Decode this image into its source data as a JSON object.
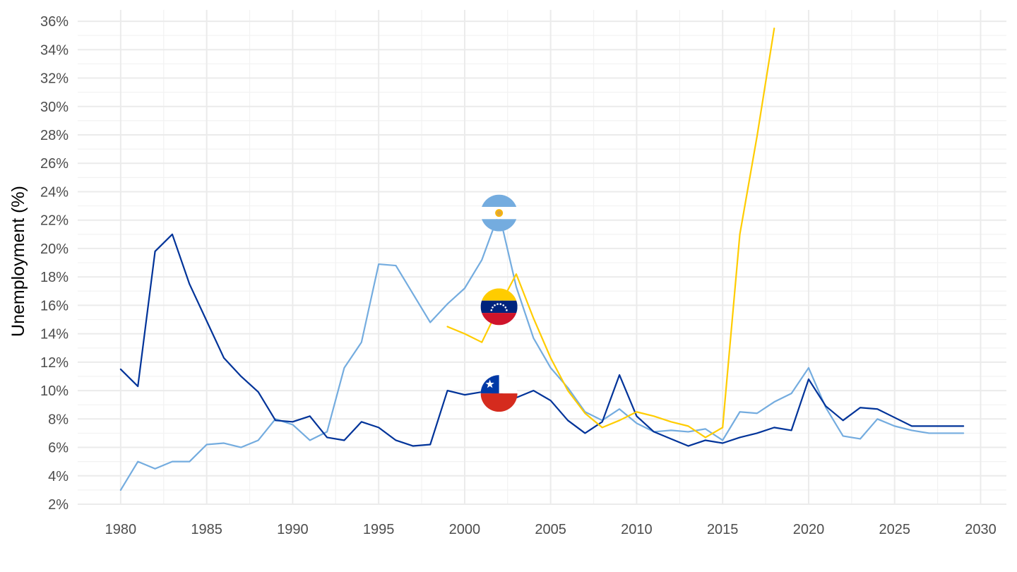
{
  "chart_data": {
    "type": "line",
    "title": "",
    "xlabel": "",
    "ylabel": "Unemployment (%)",
    "xlim": [
      1977.5,
      2031.5
    ],
    "ylim": [
      2,
      36.8
    ],
    "x_ticks": [
      1980,
      1985,
      1990,
      1995,
      2000,
      2005,
      2010,
      2015,
      2020,
      2025,
      2030
    ],
    "y_ticks": [
      2,
      4,
      6,
      8,
      10,
      12,
      14,
      16,
      18,
      20,
      22,
      24,
      26,
      28,
      30,
      32,
      34,
      36
    ],
    "y_tick_suffix": "%",
    "grid": true,
    "legend": "flag icons near series, around x = 2002",
    "series": [
      {
        "key": "chile",
        "flag": "chile-flag-icon",
        "color": "#003399",
        "flag_at": [
          2002,
          9.8
        ],
        "x": [
          1980,
          1981,
          1982,
          1983,
          1984,
          1985,
          1986,
          1987,
          1988,
          1989,
          1990,
          1991,
          1992,
          1993,
          1994,
          1995,
          1996,
          1997,
          1998,
          1999,
          2000,
          2001,
          2002,
          2003,
          2004,
          2005,
          2006,
          2007,
          2008,
          2009,
          2010,
          2011,
          2012,
          2013,
          2014,
          2015,
          2016,
          2017,
          2018,
          2019,
          2020,
          2021,
          2022,
          2023,
          2024,
          2025,
          2026,
          2027,
          2028,
          2029
        ],
        "y": [
          11.5,
          10.3,
          19.8,
          21.0,
          17.5,
          14.9,
          12.3,
          11.0,
          9.9,
          7.9,
          7.8,
          8.2,
          6.7,
          6.5,
          7.8,
          7.4,
          6.5,
          6.1,
          6.2,
          10.0,
          9.7,
          9.9,
          9.8,
          9.5,
          10.0,
          9.3,
          7.9,
          7.0,
          7.8,
          11.1,
          8.2,
          7.1,
          6.6,
          6.1,
          6.5,
          6.3,
          6.7,
          7.0,
          7.4,
          7.2,
          10.8,
          8.9,
          7.9,
          8.8,
          8.7,
          8.1,
          7.5,
          7.5,
          7.5,
          7.5
        ]
      },
      {
        "key": "argentina",
        "flag": "argentina-flag-icon",
        "color": "#74acdf",
        "flag_at": [
          2002,
          22.5
        ],
        "x": [
          1980,
          1981,
          1982,
          1983,
          1984,
          1985,
          1986,
          1987,
          1988,
          1989,
          1990,
          1991,
          1992,
          1993,
          1994,
          1995,
          1996,
          1997,
          1998,
          1999,
          2000,
          2001,
          2002,
          2003,
          2004,
          2005,
          2006,
          2007,
          2008,
          2009,
          2010,
          2011,
          2012,
          2013,
          2014,
          2015,
          2016,
          2017,
          2018,
          2019,
          2020,
          2021,
          2022,
          2023,
          2024,
          2025,
          2026,
          2027,
          2028,
          2029
        ],
        "y": [
          3.0,
          5.0,
          4.5,
          5.0,
          5.0,
          6.2,
          6.3,
          6.0,
          6.5,
          8.0,
          7.6,
          6.5,
          7.1,
          11.6,
          13.4,
          18.9,
          18.8,
          16.8,
          14.8,
          16.1,
          17.2,
          19.2,
          22.5,
          17.3,
          13.7,
          11.6,
          10.2,
          8.5,
          7.9,
          8.7,
          7.7,
          7.1,
          7.2,
          7.1,
          7.3,
          6.5,
          8.5,
          8.4,
          9.2,
          9.8,
          11.6,
          8.8,
          6.8,
          6.6,
          8.0,
          7.5,
          7.2,
          7.0,
          7.0,
          7.0
        ]
      },
      {
        "key": "venezuela",
        "flag": "venezuela-flag-icon",
        "color": "#ffcc00",
        "flag_at": [
          2002,
          15.9
        ],
        "x": [
          1999,
          2000,
          2001,
          2002,
          2003,
          2004,
          2005,
          2006,
          2007,
          2008,
          2009,
          2010,
          2011,
          2012,
          2013,
          2014,
          2015,
          2016,
          2017,
          2018
        ],
        "y": [
          14.5,
          14.0,
          13.4,
          15.9,
          18.2,
          15.1,
          12.3,
          10.0,
          8.4,
          7.4,
          7.9,
          8.5,
          8.2,
          7.8,
          7.5,
          6.7,
          7.4,
          21.0,
          27.9,
          35.5
        ]
      }
    ]
  }
}
